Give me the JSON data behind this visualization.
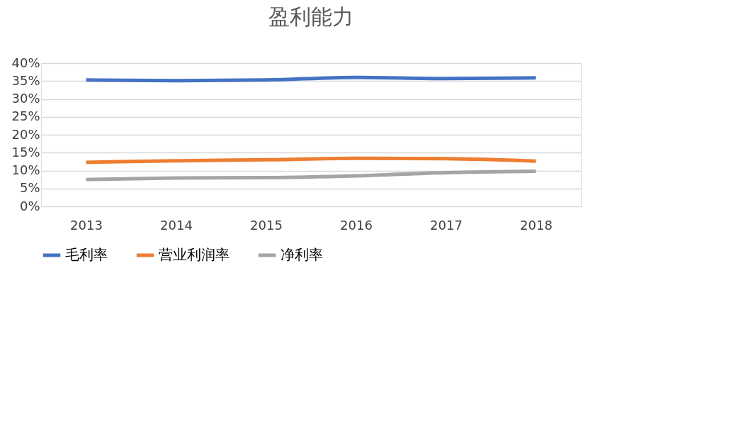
{
  "chart_data": {
    "type": "line",
    "title": "盈利能力",
    "categories": [
      "2013",
      "2014",
      "2015",
      "2016",
      "2017",
      "2018"
    ],
    "series": [
      {
        "name": "毛利率",
        "color": "#4472c4",
        "values": [
          35.3,
          35.1,
          35.3,
          36.0,
          35.7,
          35.9
        ]
      },
      {
        "name": "营业利润率",
        "color": "#ed7d31",
        "values": [
          12.3,
          12.7,
          13.0,
          13.4,
          13.3,
          12.6
        ]
      },
      {
        "name": "净利率",
        "color": "#a5a5a5",
        "values": [
          7.5,
          7.9,
          8.0,
          8.5,
          9.4,
          9.8
        ]
      }
    ],
    "ylim": [
      0,
      40
    ],
    "yticks": [
      {
        "value": 0,
        "label": "0%"
      },
      {
        "value": 5,
        "label": "5%"
      },
      {
        "value": 10,
        "label": "10%"
      },
      {
        "value": 15,
        "label": "15%"
      },
      {
        "value": 20,
        "label": "20%"
      },
      {
        "value": 25,
        "label": "25%"
      },
      {
        "value": 30,
        "label": "30%"
      },
      {
        "value": 35,
        "label": "35%"
      },
      {
        "value": 40,
        "label": "40%"
      }
    ],
    "grid": "y",
    "legend": "bottom",
    "marker": "none",
    "line_style": "solid"
  }
}
